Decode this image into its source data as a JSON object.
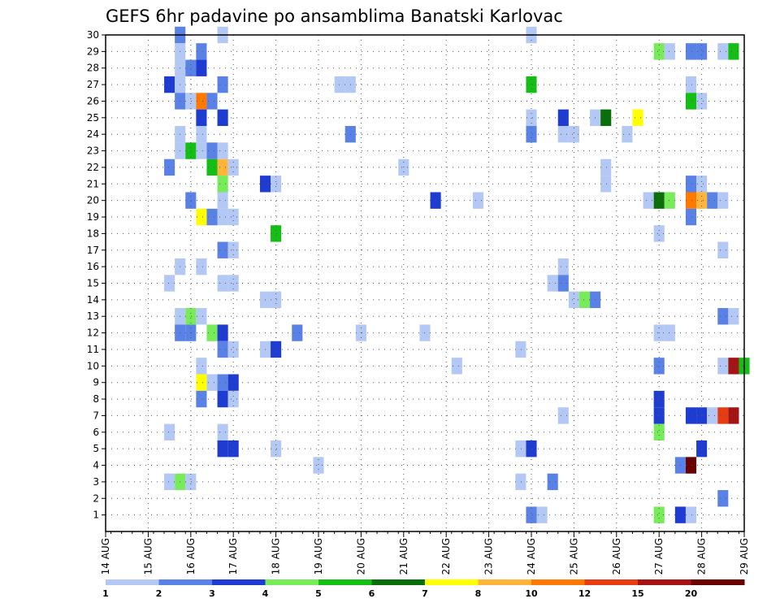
{
  "chart_data": {
    "type": "heatmap",
    "title": "GEFS 6hr padavine po ansamblima Banatski Karlovac",
    "x_tick_labels": [
      "14 AUG",
      "15 AUG",
      "16 AUG",
      "17 AUG",
      "18 AUG",
      "19 AUG",
      "20 AUG",
      "21 AUG",
      "22 AUG",
      "23 AUG",
      "24 AUG",
      "25 AUG",
      "26 AUG",
      "27 AUG",
      "28 AUG",
      "29 AUG"
    ],
    "y_tick_labels": [
      "1",
      "2",
      "3",
      "4",
      "5",
      "6",
      "7",
      "8",
      "9",
      "10",
      "11",
      "12",
      "13",
      "14",
      "15",
      "16",
      "17",
      "18",
      "19",
      "20",
      "21",
      "22",
      "23",
      "24",
      "25",
      "26",
      "27",
      "28",
      "29",
      "30"
    ],
    "xlim_days": [
      14,
      29
    ],
    "ylim_members": [
      0,
      30
    ],
    "grid": true,
    "colorbar": {
      "labels": [
        "1",
        "2",
        "3",
        "4",
        "5",
        "6",
        "7",
        "8",
        "10",
        "12",
        "15",
        "20"
      ],
      "colors": [
        "#b4c8f5",
        "#5a82e6",
        "#1e3cd2",
        "#78eb5a",
        "#14be14",
        "#0a6e0a",
        "#ffff00",
        "#ffb43c",
        "#ff7800",
        "#e63c14",
        "#a51414",
        "#690000"
      ]
    },
    "cells": [
      {
        "member": 30,
        "time": "15 18z",
        "class": 2
      },
      {
        "member": 30,
        "time": "16 18z",
        "class": 1
      },
      {
        "member": 30,
        "time": "24 00z",
        "class": 1
      },
      {
        "member": 29,
        "time": "15 18z",
        "class": 1
      },
      {
        "member": 29,
        "time": "16 06z",
        "class": 2
      },
      {
        "member": 29,
        "time": "27 00z",
        "class": 4
      },
      {
        "member": 29,
        "time": "27 06z",
        "class": 1
      },
      {
        "member": 29,
        "time": "27 18z",
        "class": 2
      },
      {
        "member": 29,
        "time": "28 00z",
        "class": 2
      },
      {
        "member": 29,
        "time": "28 12z",
        "class": 1
      },
      {
        "member": 29,
        "time": "28 18z",
        "class": 5
      },
      {
        "member": 28,
        "time": "15 18z",
        "class": 1
      },
      {
        "member": 28,
        "time": "16 00z",
        "class": 2
      },
      {
        "member": 28,
        "time": "16 06z",
        "class": 3
      },
      {
        "member": 27,
        "time": "15 12z",
        "class": 3
      },
      {
        "member": 27,
        "time": "15 18z",
        "class": 1
      },
      {
        "member": 27,
        "time": "16 18z",
        "class": 2
      },
      {
        "member": 27,
        "time": "19 12z",
        "class": 1
      },
      {
        "member": 27,
        "time": "19 18z",
        "class": 1
      },
      {
        "member": 27,
        "time": "24 00z",
        "class": 5
      },
      {
        "member": 27,
        "time": "27 18z",
        "class": 1
      },
      {
        "member": 26,
        "time": "15 18z",
        "class": 2
      },
      {
        "member": 26,
        "time": "16 00z",
        "class": 1
      },
      {
        "member": 26,
        "time": "16 06z",
        "class": 9
      },
      {
        "member": 26,
        "time": "16 12z",
        "class": 2
      },
      {
        "member": 26,
        "time": "27 18z",
        "class": 5
      },
      {
        "member": 26,
        "time": "28 00z",
        "class": 1
      },
      {
        "member": 25,
        "time": "16 06z",
        "class": 3
      },
      {
        "member": 25,
        "time": "16 18z",
        "class": 3
      },
      {
        "member": 25,
        "time": "24 00z",
        "class": 1
      },
      {
        "member": 25,
        "time": "24 18z",
        "class": 3
      },
      {
        "member": 25,
        "time": "25 12z",
        "class": 1
      },
      {
        "member": 25,
        "time": "25 18z",
        "class": 6
      },
      {
        "member": 25,
        "time": "26 12z",
        "class": 7
      },
      {
        "member": 24,
        "time": "15 18z",
        "class": 1
      },
      {
        "member": 24,
        "time": "16 06z",
        "class": 1
      },
      {
        "member": 24,
        "time": "19 18z",
        "class": 2
      },
      {
        "member": 24,
        "time": "24 00z",
        "class": 2
      },
      {
        "member": 24,
        "time": "24 18z",
        "class": 1
      },
      {
        "member": 24,
        "time": "25 00z",
        "class": 1
      },
      {
        "member": 24,
        "time": "26 06z",
        "class": 1
      },
      {
        "member": 23,
        "time": "15 18z",
        "class": 1
      },
      {
        "member": 23,
        "time": "16 00z",
        "class": 5
      },
      {
        "member": 23,
        "time": "16 06z",
        "class": 1
      },
      {
        "member": 23,
        "time": "16 12z",
        "class": 2
      },
      {
        "member": 23,
        "time": "16 18z",
        "class": 1
      },
      {
        "member": 22,
        "time": "15 12z",
        "class": 2
      },
      {
        "member": 22,
        "time": "16 12z",
        "class": 5
      },
      {
        "member": 22,
        "time": "16 18z",
        "class": 8
      },
      {
        "member": 22,
        "time": "17 00z",
        "class": 1
      },
      {
        "member": 22,
        "time": "21 00z",
        "class": 1
      },
      {
        "member": 22,
        "time": "25 18z",
        "class": 1
      },
      {
        "member": 21,
        "time": "16 18z",
        "class": 4
      },
      {
        "member": 21,
        "time": "17 18z",
        "class": 3
      },
      {
        "member": 21,
        "time": "18 00z",
        "class": 1
      },
      {
        "member": 21,
        "time": "25 18z",
        "class": 1
      },
      {
        "member": 21,
        "time": "27 18z",
        "class": 2
      },
      {
        "member": 21,
        "time": "28 00z",
        "class": 1
      },
      {
        "member": 20,
        "time": "16 00z",
        "class": 2
      },
      {
        "member": 20,
        "time": "16 18z",
        "class": 1
      },
      {
        "member": 20,
        "time": "21 18z",
        "class": 3
      },
      {
        "member": 20,
        "time": "22 18z",
        "class": 1
      },
      {
        "member": 20,
        "time": "26 18z",
        "class": 1
      },
      {
        "member": 20,
        "time": "27 00z",
        "class": 6
      },
      {
        "member": 20,
        "time": "27 06z",
        "class": 4
      },
      {
        "member": 20,
        "time": "27 18z",
        "class": 9
      },
      {
        "member": 20,
        "time": "28 00z",
        "class": 8
      },
      {
        "member": 20,
        "time": "28 06z",
        "class": 2
      },
      {
        "member": 20,
        "time": "28 12z",
        "class": 1
      },
      {
        "member": 19,
        "time": "16 06z",
        "class": 7
      },
      {
        "member": 19,
        "time": "16 12z",
        "class": 2
      },
      {
        "member": 19,
        "time": "16 18z",
        "class": 1
      },
      {
        "member": 19,
        "time": "17 00z",
        "class": 1
      },
      {
        "member": 19,
        "time": "27 18z",
        "class": 2
      },
      {
        "member": 18,
        "time": "18 00z",
        "class": 5
      },
      {
        "member": 18,
        "time": "27 00z",
        "class": 1
      },
      {
        "member": 17,
        "time": "16 18z",
        "class": 2
      },
      {
        "member": 17,
        "time": "17 00z",
        "class": 1
      },
      {
        "member": 17,
        "time": "28 12z",
        "class": 1
      },
      {
        "member": 16,
        "time": "15 18z",
        "class": 1
      },
      {
        "member": 16,
        "time": "16 06z",
        "class": 1
      },
      {
        "member": 16,
        "time": "24 18z",
        "class": 1
      },
      {
        "member": 15,
        "time": "15 12z",
        "class": 1
      },
      {
        "member": 15,
        "time": "16 18z",
        "class": 1
      },
      {
        "member": 15,
        "time": "17 00z",
        "class": 1
      },
      {
        "member": 15,
        "time": "24 12z",
        "class": 1
      },
      {
        "member": 15,
        "time": "24 18z",
        "class": 2
      },
      {
        "member": 14,
        "time": "17 18z",
        "class": 1
      },
      {
        "member": 14,
        "time": "18 00z",
        "class": 1
      },
      {
        "member": 14,
        "time": "25 00z",
        "class": 1
      },
      {
        "member": 14,
        "time": "25 06z",
        "class": 4
      },
      {
        "member": 14,
        "time": "25 12z",
        "class": 2
      },
      {
        "member": 13,
        "time": "15 18z",
        "class": 1
      },
      {
        "member": 13,
        "time": "16 00z",
        "class": 4
      },
      {
        "member": 13,
        "time": "16 06z",
        "class": 1
      },
      {
        "member": 13,
        "time": "28 12z",
        "class": 2
      },
      {
        "member": 13,
        "time": "28 18z",
        "class": 1
      },
      {
        "member": 12,
        "time": "15 18z",
        "class": 2
      },
      {
        "member": 12,
        "time": "16 00z",
        "class": 2
      },
      {
        "member": 12,
        "time": "16 12z",
        "class": 4
      },
      {
        "member": 12,
        "time": "16 18z",
        "class": 3
      },
      {
        "member": 12,
        "time": "18 12z",
        "class": 2
      },
      {
        "member": 12,
        "time": "20 00z",
        "class": 1
      },
      {
        "member": 12,
        "time": "21 12z",
        "class": 1
      },
      {
        "member": 12,
        "time": "27 00z",
        "class": 1
      },
      {
        "member": 12,
        "time": "27 06z",
        "class": 1
      },
      {
        "member": 11,
        "time": "16 18z",
        "class": 2
      },
      {
        "member": 11,
        "time": "17 00z",
        "class": 1
      },
      {
        "member": 11,
        "time": "17 18z",
        "class": 1
      },
      {
        "member": 11,
        "time": "18 00z",
        "class": 3
      },
      {
        "member": 11,
        "time": "23 18z",
        "class": 1
      },
      {
        "member": 10,
        "time": "16 06z",
        "class": 1
      },
      {
        "member": 10,
        "time": "22 06z",
        "class": 1
      },
      {
        "member": 10,
        "time": "27 00z",
        "class": 2
      },
      {
        "member": 10,
        "time": "28 12z",
        "class": 1
      },
      {
        "member": 10,
        "time": "28 18z",
        "class": 11
      },
      {
        "member": 10,
        "time": "29 00z",
        "class": 5
      },
      {
        "member": 9,
        "time": "16 06z",
        "class": 7
      },
      {
        "member": 9,
        "time": "16 12z",
        "class": 1
      },
      {
        "member": 9,
        "time": "16 18z",
        "class": 2
      },
      {
        "member": 9,
        "time": "17 00z",
        "class": 3
      },
      {
        "member": 8,
        "time": "16 06z",
        "class": 2
      },
      {
        "member": 8,
        "time": "16 18z",
        "class": 3
      },
      {
        "member": 8,
        "time": "17 00z",
        "class": 1
      },
      {
        "member": 8,
        "time": "27 00z",
        "class": 3
      },
      {
        "member": 7,
        "time": "24 18z",
        "class": 1
      },
      {
        "member": 7,
        "time": "27 00z",
        "class": 3
      },
      {
        "member": 7,
        "time": "27 18z",
        "class": 3
      },
      {
        "member": 7,
        "time": "28 00z",
        "class": 3
      },
      {
        "member": 7,
        "time": "28 06z",
        "class": 1
      },
      {
        "member": 7,
        "time": "28 12z",
        "class": 10
      },
      {
        "member": 7,
        "time": "28 18z",
        "class": 11
      },
      {
        "member": 6,
        "time": "15 12z",
        "class": 1
      },
      {
        "member": 6,
        "time": "16 18z",
        "class": 1
      },
      {
        "member": 6,
        "time": "27 00z",
        "class": 4
      },
      {
        "member": 5,
        "time": "16 18z",
        "class": 3
      },
      {
        "member": 5,
        "time": "17 00z",
        "class": 3
      },
      {
        "member": 5,
        "time": "18 00z",
        "class": 1
      },
      {
        "member": 5,
        "time": "23 18z",
        "class": 1
      },
      {
        "member": 5,
        "time": "24 00z",
        "class": 3
      },
      {
        "member": 5,
        "time": "28 00z",
        "class": 3
      },
      {
        "member": 4,
        "time": "19 00z",
        "class": 1
      },
      {
        "member": 4,
        "time": "27 12z",
        "class": 2
      },
      {
        "member": 4,
        "time": "27 18z",
        "class": 12
      },
      {
        "member": 3,
        "time": "15 12z",
        "class": 1
      },
      {
        "member": 3,
        "time": "15 18z",
        "class": 4
      },
      {
        "member": 3,
        "time": "16 00z",
        "class": 1
      },
      {
        "member": 3,
        "time": "23 18z",
        "class": 1
      },
      {
        "member": 3,
        "time": "24 12z",
        "class": 2
      },
      {
        "member": 2,
        "time": "28 12z",
        "class": 2
      },
      {
        "member": 1,
        "time": "24 00z",
        "class": 2
      },
      {
        "member": 1,
        "time": "24 06z",
        "class": 1
      },
      {
        "member": 1,
        "time": "27 00z",
        "class": 4
      },
      {
        "member": 1,
        "time": "27 12z",
        "class": 3
      },
      {
        "member": 1,
        "time": "27 18z",
        "class": 1
      }
    ]
  }
}
